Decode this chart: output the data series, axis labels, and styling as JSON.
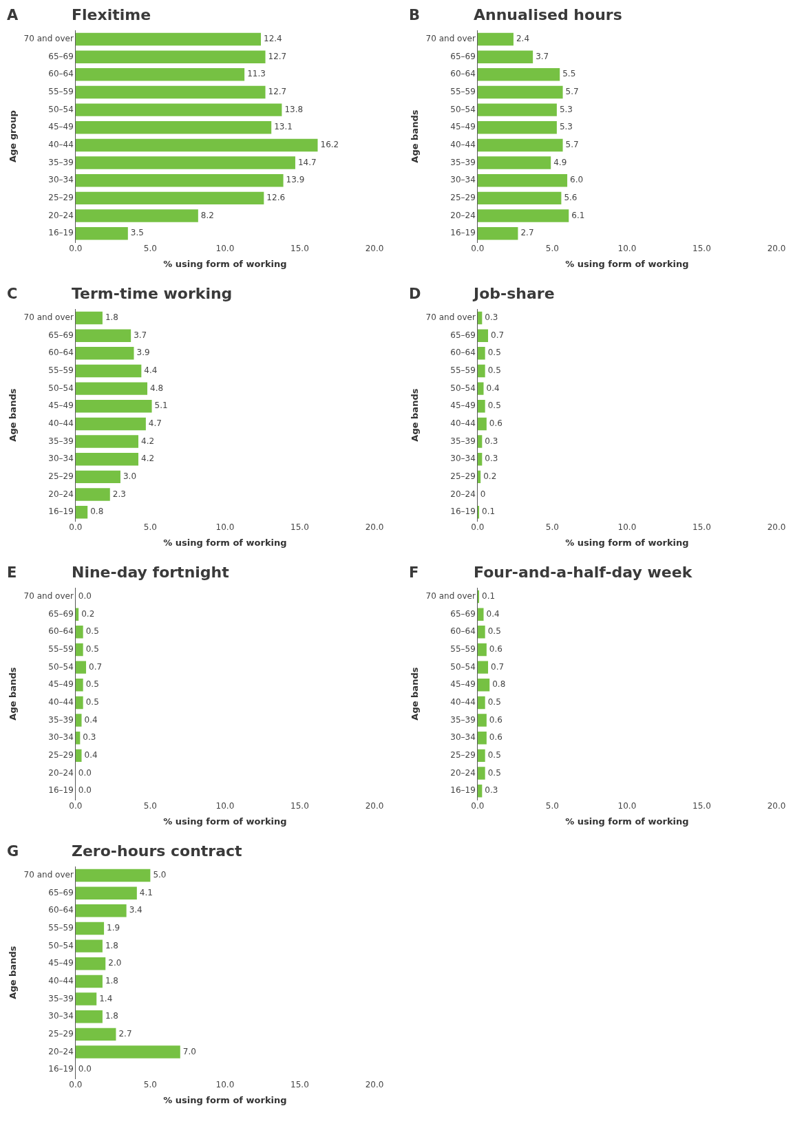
{
  "chart_data": [
    {
      "type": "bar",
      "orientation": "horizontal",
      "title": "Flexitime",
      "annotations": [
        "A"
      ],
      "xlabel": "% using form of working",
      "ylabel": "Age group",
      "categories": [
        "70 and over",
        "65–69",
        "60–64",
        "55–59",
        "50–54",
        "45–49",
        "40–44",
        "35–39",
        "30–34",
        "25–29",
        "20–24",
        "16–19"
      ],
      "values": [
        12.4,
        12.7,
        11.3,
        12.7,
        13.8,
        13.1,
        16.2,
        14.7,
        13.9,
        12.6,
        8.2,
        3.5
      ],
      "value_labels": [
        "12.4",
        "12.7",
        "11.3",
        "12.7",
        "13.8",
        "13.1",
        "16.2",
        "14.7",
        "13.9",
        "12.6",
        "8.2",
        "3.5"
      ],
      "color": "#76c143",
      "xlim": [
        0,
        20
      ],
      "xticks": [
        {
          "value": 0,
          "label": "0.0"
        },
        {
          "value": 5,
          "label": "5.0"
        },
        {
          "value": 10,
          "label": "10.0"
        },
        {
          "value": 15,
          "label": "15.0"
        },
        {
          "value": 20,
          "label": "20.0"
        }
      ],
      "grid": false,
      "legend": false
    },
    {
      "type": "bar",
      "orientation": "horizontal",
      "title": "Annualised hours",
      "annotations": [
        "B"
      ],
      "xlabel": "% using form of working",
      "ylabel": "Age bands",
      "categories": [
        "70 and over",
        "65–69",
        "60–64",
        "55–59",
        "50–54",
        "45–49",
        "40–44",
        "35–39",
        "30–34",
        "25–29",
        "20–24",
        "16–19"
      ],
      "values": [
        2.4,
        3.7,
        5.5,
        5.7,
        5.3,
        5.3,
        5.7,
        4.9,
        6.0,
        5.6,
        6.1,
        2.7
      ],
      "value_labels": [
        "2.4",
        "3.7",
        "5.5",
        "5.7",
        "5.3",
        "5.3",
        "5.7",
        "4.9",
        "6.0",
        "5.6",
        "6.1",
        "2.7"
      ],
      "color": "#76c143",
      "xlim": [
        0,
        20
      ],
      "xticks": [
        {
          "value": 0,
          "label": "0.0"
        },
        {
          "value": 5,
          "label": "5.0"
        },
        {
          "value": 10,
          "label": "10.0"
        },
        {
          "value": 15,
          "label": "15.0"
        },
        {
          "value": 20,
          "label": "20.0"
        }
      ],
      "grid": false,
      "legend": false
    },
    {
      "type": "bar",
      "orientation": "horizontal",
      "title": "Term-time working",
      "annotations": [
        "C"
      ],
      "xlabel": "% using form of working",
      "ylabel": "Age bands",
      "categories": [
        "70 and over",
        "65–69",
        "60–64",
        "55–59",
        "50–54",
        "45–49",
        "40–44",
        "35–39",
        "30–34",
        "25–29",
        "20–24",
        "16–19"
      ],
      "values": [
        1.8,
        3.7,
        3.9,
        4.4,
        4.8,
        5.1,
        4.7,
        4.2,
        4.2,
        3.0,
        2.3,
        0.8
      ],
      "value_labels": [
        "1.8",
        "3.7",
        "3.9",
        "4.4",
        "4.8",
        "5.1",
        "4.7",
        "4.2",
        "4.2",
        "3.0",
        "2.3",
        "0.8"
      ],
      "color": "#76c143",
      "xlim": [
        0,
        20
      ],
      "xticks": [
        {
          "value": 0,
          "label": "0.0"
        },
        {
          "value": 5,
          "label": "5.0"
        },
        {
          "value": 10,
          "label": "10.0"
        },
        {
          "value": 15,
          "label": "15.0"
        },
        {
          "value": 20,
          "label": "20.0"
        }
      ],
      "grid": false,
      "legend": false
    },
    {
      "type": "bar",
      "orientation": "horizontal",
      "title": "Job-share",
      "annotations": [
        "D"
      ],
      "xlabel": "% using form of working",
      "ylabel": "Age bands",
      "categories": [
        "70 and over",
        "65–69",
        "60–64",
        "55–59",
        "50–54",
        "45–49",
        "40–44",
        "35–39",
        "30–34",
        "25–29",
        "20–24",
        "16–19"
      ],
      "values": [
        0.3,
        0.7,
        0.5,
        0.5,
        0.4,
        0.5,
        0.6,
        0.3,
        0.3,
        0.2,
        0,
        0.1
      ],
      "value_labels": [
        "0.3",
        "0.7",
        "0.5",
        "0.5",
        "0.4",
        "0.5",
        "0.6",
        "0.3",
        "0.3",
        "0.2",
        "0",
        "0.1"
      ],
      "color": "#76c143",
      "xlim": [
        0,
        20
      ],
      "xticks": [
        {
          "value": 0,
          "label": "0.0"
        },
        {
          "value": 5,
          "label": "5.0"
        },
        {
          "value": 10,
          "label": "10.0"
        },
        {
          "value": 15,
          "label": "15.0"
        },
        {
          "value": 20,
          "label": "20.0"
        }
      ],
      "grid": false,
      "legend": false
    },
    {
      "type": "bar",
      "orientation": "horizontal",
      "title": "Nine-day fortnight",
      "annotations": [
        "E"
      ],
      "xlabel": "% using form of working",
      "ylabel": "Age bands",
      "categories": [
        "70 and over",
        "65–69",
        "60–64",
        "55–59",
        "50–54",
        "45–49",
        "40–44",
        "35–39",
        "30–34",
        "25–29",
        "20–24",
        "16–19"
      ],
      "values": [
        0.0,
        0.2,
        0.5,
        0.5,
        0.7,
        0.5,
        0.5,
        0.4,
        0.3,
        0.4,
        0.0,
        0.0
      ],
      "value_labels": [
        "0.0",
        "0.2",
        "0.5",
        "0.5",
        "0.7",
        "0.5",
        "0.5",
        "0.4",
        "0.3",
        "0.4",
        "0.0",
        "0.0"
      ],
      "color": "#76c143",
      "xlim": [
        0,
        20
      ],
      "xticks": [
        {
          "value": 0,
          "label": "0.0"
        },
        {
          "value": 5,
          "label": "5.0"
        },
        {
          "value": 10,
          "label": "10.0"
        },
        {
          "value": 15,
          "label": "15.0"
        },
        {
          "value": 20,
          "label": "20.0"
        }
      ],
      "grid": false,
      "legend": false
    },
    {
      "type": "bar",
      "orientation": "horizontal",
      "title": "Four-and-a-half-day week",
      "annotations": [
        "F"
      ],
      "xlabel": "% using form of working",
      "ylabel": "Age bands",
      "categories": [
        "70 and over",
        "65–69",
        "60–64",
        "55–59",
        "50–54",
        "45–49",
        "40–44",
        "35–39",
        "30–34",
        "25–29",
        "20–24",
        "16–19"
      ],
      "values": [
        0.1,
        0.4,
        0.5,
        0.6,
        0.7,
        0.8,
        0.5,
        0.6,
        0.6,
        0.5,
        0.5,
        0.3
      ],
      "value_labels": [
        "0.1",
        "0.4",
        "0.5",
        "0.6",
        "0.7",
        "0.8",
        "0.5",
        "0.6",
        "0.6",
        "0.5",
        "0.5",
        "0.3"
      ],
      "color": "#76c143",
      "xlim": [
        0,
        20
      ],
      "xticks": [
        {
          "value": 0,
          "label": "0.0"
        },
        {
          "value": 5,
          "label": "5.0"
        },
        {
          "value": 10,
          "label": "10.0"
        },
        {
          "value": 15,
          "label": "15.0"
        },
        {
          "value": 20,
          "label": "20.0"
        }
      ],
      "grid": false,
      "legend": false
    },
    {
      "type": "bar",
      "orientation": "horizontal",
      "title": "Zero-hours contract",
      "annotations": [
        "G"
      ],
      "xlabel": "% using form of working",
      "ylabel": "Age bands",
      "categories": [
        "70 and over",
        "65–69",
        "60–64",
        "55–59",
        "50–54",
        "45–49",
        "40–44",
        "35–39",
        "30–34",
        "25–29",
        "20–24",
        "16–19"
      ],
      "values": [
        5.0,
        4.1,
        3.4,
        1.9,
        1.8,
        2.0,
        1.8,
        1.4,
        1.8,
        2.7,
        7.0,
        0.0
      ],
      "value_labels": [
        "5.0",
        "4.1",
        "3.4",
        "1.9",
        "1.8",
        "2.0",
        "1.8",
        "1.4",
        "1.8",
        "2.7",
        "7.0",
        "0.0"
      ],
      "color": "#76c143",
      "xlim": [
        0,
        20
      ],
      "xticks": [
        {
          "value": 0,
          "label": "0.0"
        },
        {
          "value": 5,
          "label": "5.0"
        },
        {
          "value": 10,
          "label": "10.0"
        },
        {
          "value": 15,
          "label": "15.0"
        },
        {
          "value": 20,
          "label": "20.0"
        }
      ],
      "grid": false,
      "legend": false
    }
  ]
}
